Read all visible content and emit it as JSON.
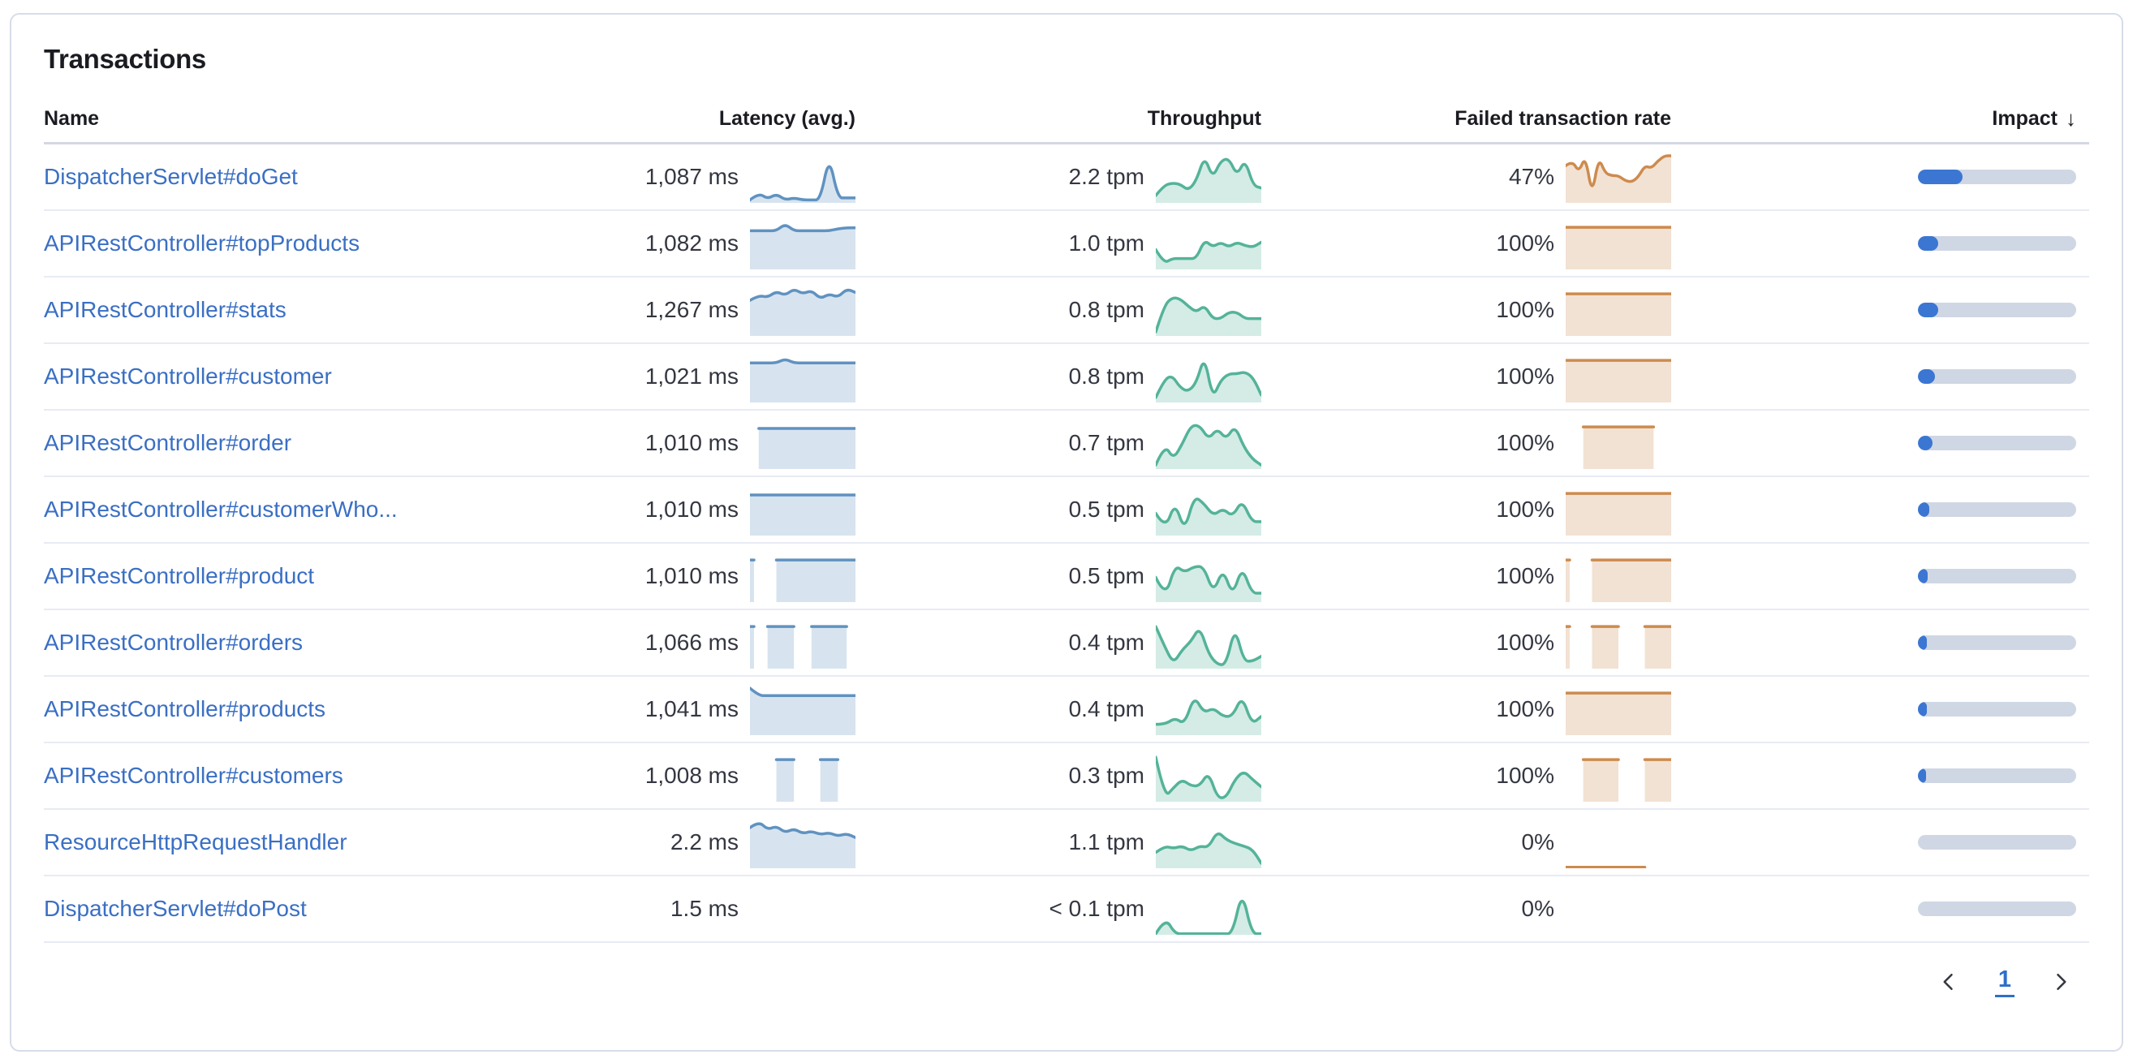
{
  "panel": {
    "title": "Transactions"
  },
  "colors": {
    "link_blue": "#3a6fc4",
    "latency_spark": "#6092c0",
    "throughput_spark": "#54b399",
    "failed_spark": "#cd8b4e",
    "impact_fill": "#3b76d2",
    "impact_track": "#cfd7e4"
  },
  "table": {
    "columns": [
      {
        "label": "Name"
      },
      {
        "label": "Latency (avg.)"
      },
      {
        "label": "Throughput"
      },
      {
        "label": "Failed transaction rate"
      },
      {
        "label": "Impact",
        "sort": "desc",
        "sort_icon": "↓"
      }
    ],
    "rows": [
      {
        "name": "DispatcherServlet#doGet",
        "latency": "1,087 ms",
        "latency_spark": [
          0.06,
          0.2,
          0.08,
          0.18,
          0.06,
          0.1,
          0.06,
          0.06,
          0.06,
          0.95,
          0.1,
          0.1,
          0.1
        ],
        "throughput": "2.2 tpm",
        "throughput_spark": [
          0.15,
          0.35,
          0.4,
          0.38,
          0.25,
          0.45,
          0.95,
          0.5,
          0.85,
          0.9,
          0.55,
          0.88,
          0.35,
          0.3
        ],
        "failed_rate": "47%",
        "failed_spark": [
          0.75,
          0.85,
          0.62,
          0.95,
          0.15,
          0.92,
          0.6,
          0.55,
          0.55,
          0.45,
          0.42,
          0.52,
          0.75,
          0.7,
          0.85,
          0.95,
          0.95
        ],
        "impact_pct": 28
      },
      {
        "name": "APIRestController#topProducts",
        "latency": "1,082 ms",
        "latency_spark": [
          0.78,
          0.78,
          0.78,
          0.78,
          0.92,
          0.78,
          0.78,
          0.78,
          0.78,
          0.78,
          0.82,
          0.84,
          0.84
        ],
        "throughput": "1.0 tpm",
        "throughput_spark": [
          0.4,
          0.12,
          0.22,
          0.22,
          0.22,
          0.22,
          0.6,
          0.45,
          0.55,
          0.45,
          0.55,
          0.48,
          0.45,
          0.55
        ],
        "failed_rate": "100%",
        "failed_spark": [
          0.85,
          0.85,
          0.85,
          0.85,
          0.85,
          0.85,
          0.85,
          0.85,
          0.85,
          0.85,
          0.85,
          0.85,
          0.85
        ],
        "impact_pct": 13
      },
      {
        "name": "APIRestController#stats",
        "latency": "1,267 ms",
        "latency_spark": [
          0.72,
          0.82,
          0.78,
          0.9,
          0.82,
          0.95,
          0.85,
          0.92,
          0.75,
          0.85,
          0.78,
          0.95,
          0.88
        ],
        "throughput": "0.8 tpm",
        "throughput_spark": [
          0.08,
          0.6,
          0.78,
          0.75,
          0.6,
          0.48,
          0.62,
          0.35,
          0.35,
          0.48,
          0.48,
          0.35,
          0.35,
          0.35
        ],
        "failed_rate": "100%",
        "failed_spark": [
          0.85,
          0.85,
          0.85,
          0.85,
          0.85,
          0.85,
          0.85,
          0.85,
          0.85,
          0.85,
          0.85,
          0.85,
          0.85
        ],
        "impact_pct": 13
      },
      {
        "name": "APIRestController#customer",
        "latency": "1,021 ms",
        "latency_spark": [
          0.8,
          0.8,
          0.8,
          0.8,
          0.88,
          0.8,
          0.8,
          0.8,
          0.8,
          0.8,
          0.8,
          0.8,
          0.8
        ],
        "throughput": "0.8 tpm",
        "throughput_spark": [
          0.1,
          0.45,
          0.55,
          0.3,
          0.22,
          0.4,
          0.95,
          0.08,
          0.45,
          0.58,
          0.58,
          0.62,
          0.5,
          0.15
        ],
        "failed_rate": "100%",
        "failed_spark": [
          0.85,
          0.85,
          0.85,
          0.85,
          0.85,
          0.85,
          0.85,
          0.85,
          0.85,
          0.85,
          0.85,
          0.85,
          0.85
        ],
        "impact_pct": 11
      },
      {
        "name": "APIRestController#order",
        "latency": "1,010 ms",
        "latency_spark": [
          null,
          0.82,
          0.82,
          0.82,
          0.82,
          0.82,
          0.82,
          0.82,
          0.82,
          0.82,
          0.82,
          0.82,
          0.82
        ],
        "throughput": "0.7 tpm",
        "throughput_spark": [
          0.08,
          0.5,
          0.2,
          0.5,
          0.88,
          0.88,
          0.6,
          0.82,
          0.6,
          0.88,
          0.45,
          0.2,
          0.08
        ],
        "failed_rate": "100%",
        "failed_spark": [
          null,
          null,
          0.85,
          0.85,
          0.85,
          0.85,
          0.85,
          0.85,
          0.85,
          0.85,
          0.85,
          null,
          null
        ],
        "impact_pct": 9
      },
      {
        "name": "APIRestController#customerWho...",
        "latency": "1,010 ms",
        "latency_spark": [
          0.82,
          0.82,
          0.82,
          0.82,
          0.82,
          0.82,
          0.82,
          0.82,
          0.82,
          0.82,
          0.82,
          0.82,
          0.82
        ],
        "throughput": "0.5 tpm",
        "throughput_spark": [
          0.45,
          0.12,
          0.68,
          0.08,
          0.8,
          0.65,
          0.4,
          0.55,
          0.38,
          0.72,
          0.28,
          0.28
        ],
        "failed_rate": "100%",
        "failed_spark": [
          0.85,
          0.85,
          0.85,
          0.85,
          0.85,
          0.85,
          0.85,
          0.85,
          0.85,
          0.85,
          0.85,
          0.85,
          0.85
        ],
        "impact_pct": 7
      },
      {
        "name": "APIRestController#product",
        "latency": "1,010 ms",
        "latency_spark": [
          0.85,
          null,
          null,
          0.85,
          0.85,
          0.85,
          0.85,
          0.85,
          0.85,
          0.85,
          0.85,
          0.85,
          0.85
        ],
        "throughput": "0.5 tpm",
        "throughput_spark": [
          0.5,
          0.08,
          0.75,
          0.6,
          0.72,
          0.72,
          0.18,
          0.68,
          0.12,
          0.72,
          0.18,
          0.18
        ],
        "failed_rate": "100%",
        "failed_spark": [
          0.85,
          null,
          null,
          0.85,
          0.85,
          0.85,
          0.85,
          0.85,
          0.85,
          0.85,
          0.85,
          0.85,
          0.85
        ],
        "impact_pct": 6
      },
      {
        "name": "APIRestController#orders",
        "latency": "1,066 ms",
        "latency_spark": [
          0.85,
          null,
          0.85,
          0.85,
          0.85,
          0.85,
          null,
          0.85,
          0.85,
          0.85,
          0.85,
          0.85,
          null
        ],
        "throughput": "0.4 tpm",
        "throughput_spark": [
          0.85,
          0.45,
          0.1,
          0.38,
          0.55,
          0.85,
          0.3,
          0.08,
          0.08,
          0.85,
          0.15,
          0.15,
          0.25
        ],
        "failed_rate": "100%",
        "failed_spark": [
          0.85,
          null,
          null,
          0.85,
          0.85,
          0.85,
          0.85,
          null,
          null,
          0.85,
          0.85,
          0.85,
          0.85
        ],
        "impact_pct": 5.5
      },
      {
        "name": "APIRestController#products",
        "latency": "1,041 ms",
        "latency_spark": [
          0.95,
          0.8,
          0.8,
          0.8,
          0.8,
          0.8,
          0.8,
          0.8,
          0.8,
          0.8,
          0.8,
          0.8,
          0.8
        ],
        "throughput": "0.4 tpm",
        "throughput_spark": [
          0.22,
          0.22,
          0.35,
          0.22,
          0.8,
          0.45,
          0.55,
          0.38,
          0.38,
          0.8,
          0.22,
          0.38
        ],
        "failed_rate": "100%",
        "failed_spark": [
          0.85,
          0.85,
          0.85,
          0.85,
          0.85,
          0.85,
          0.85,
          0.85,
          0.85,
          0.85,
          0.85,
          0.85,
          0.85
        ],
        "impact_pct": 5.5
      },
      {
        "name": "APIRestController#customers",
        "latency": "1,008 ms",
        "latency_spark": [
          null,
          null,
          null,
          0.85,
          0.85,
          0.85,
          null,
          null,
          0.85,
          0.85,
          0.85,
          null,
          null
        ],
        "throughput": "0.3 tpm",
        "throughput_spark": [
          0.9,
          0.08,
          0.28,
          0.45,
          0.32,
          0.32,
          0.6,
          0.08,
          0.08,
          0.45,
          0.62,
          0.45,
          0.3
        ],
        "failed_rate": "100%",
        "failed_spark": [
          null,
          null,
          0.85,
          0.85,
          0.85,
          0.85,
          0.85,
          null,
          null,
          0.85,
          0.85,
          0.85,
          0.85
        ],
        "impact_pct": 5
      },
      {
        "name": "ResourceHttpRequestHandler",
        "latency": "2.2 ms",
        "latency_spark": [
          0.82,
          0.95,
          0.78,
          0.85,
          0.72,
          0.8,
          0.7,
          0.75,
          0.68,
          0.72,
          0.65,
          0.7,
          0.62
        ],
        "throughput": "1.1 tpm",
        "throughput_spark": [
          0.32,
          0.45,
          0.4,
          0.45,
          0.35,
          0.45,
          0.42,
          0.75,
          0.58,
          0.5,
          0.45,
          0.38,
          0.1
        ],
        "failed_rate": "0%",
        "failed_spark": [
          0.02,
          0.02,
          0.02,
          0.02,
          0.02,
          0.02,
          0.02,
          0.02,
          0.02,
          0.02,
          null,
          null,
          null
        ],
        "impact_pct": 0
      },
      {
        "name": "DispatcherServlet#doPost",
        "latency": "1.5 ms",
        "latency_spark": [],
        "throughput": "< 0.1 tpm",
        "throughput_spark": [
          0.02,
          0.35,
          0.02,
          0.02,
          0.02,
          0.02,
          0.02,
          0.02,
          0.02,
          0.9,
          0.02,
          0.02
        ],
        "failed_rate": "0%",
        "failed_spark": [],
        "impact_pct": 0
      }
    ]
  },
  "pagination": {
    "page": "1"
  }
}
